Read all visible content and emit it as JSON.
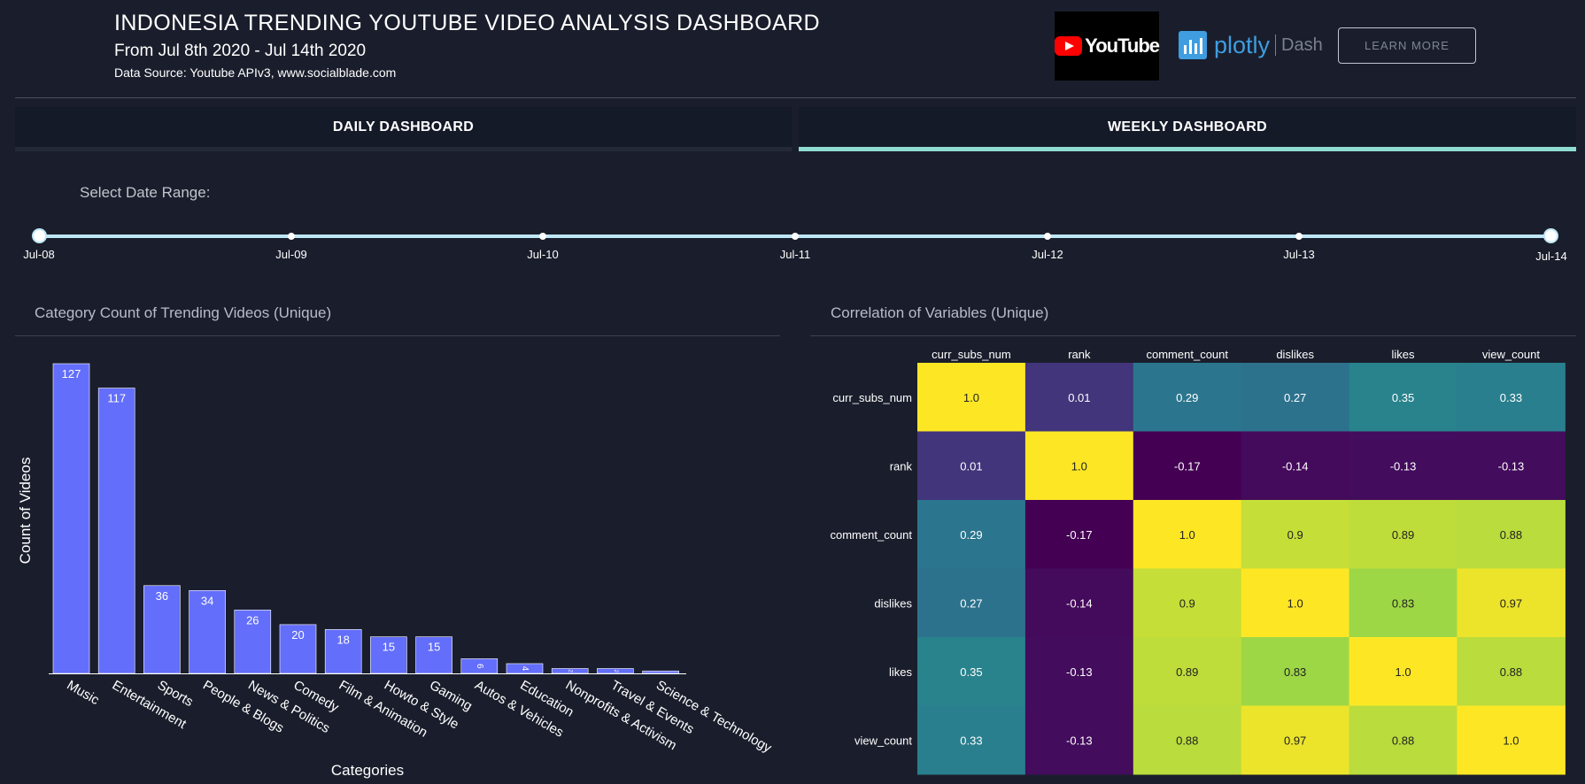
{
  "header": {
    "title": "INDONESIA TRENDING YOUTUBE VIDEO ANALYSIS DASHBOARD",
    "subtitle": "From Jul 8th 2020 - Jul 14th 2020",
    "source": "Data Source: Youtube APIv3, www.socialblade.com",
    "youtube_logo_text": "YouTube",
    "plotly_logo_text": "plotly",
    "plotly_dash_text": "Dash",
    "learn_more_label": "LEARN MORE"
  },
  "tabs": [
    {
      "label": "DAILY DASHBOARD",
      "selected": false
    },
    {
      "label": "WEEKLY DASHBOARD",
      "selected": true
    }
  ],
  "date_range": {
    "label": "Select Date Range:",
    "ticks": [
      "Jul-08",
      "Jul-09",
      "Jul-10",
      "Jul-11",
      "Jul-12",
      "Jul-13",
      "Jul-14"
    ],
    "selected_start": "Jul-08",
    "selected_end": "Jul-14"
  },
  "panels": {
    "category_title": "Category Count of Trending Videos (Unique)",
    "correlation_title": "Correlation of Variables (Unique)"
  },
  "colors": {
    "background": "#1a1e2c",
    "bar": "#636efa",
    "tab_active": "#8fdcd0",
    "slider": "#bfe6f7"
  },
  "chart_data": [
    {
      "type": "bar",
      "categories": [
        "Music",
        "Entertainment",
        "Sports",
        "People & Blogs",
        "News & Politics",
        "Comedy",
        "Film & Animation",
        "Howto & Style",
        "Gaming",
        "Autos & Vehicles",
        "Education",
        "Nonprofits & Activism",
        "Travel & Events",
        "Science & Technology"
      ],
      "values": [
        127,
        117,
        36,
        34,
        26,
        20,
        18,
        15,
        15,
        6,
        4,
        2,
        2,
        1
      ],
      "data_labels": [
        "127",
        "117",
        "36",
        "34",
        "26",
        "20",
        "18",
        "15",
        "15",
        "6",
        "4",
        "2",
        "2",
        ""
      ],
      "xlabel": "Categories",
      "ylabel": "Count of Videos",
      "ylim": [
        0,
        127
      ],
      "grid": false
    },
    {
      "type": "heatmap",
      "x": [
        "curr_subs_num",
        "rank",
        "comment_count",
        "dislikes",
        "likes",
        "view_count"
      ],
      "y": [
        "curr_subs_num",
        "rank",
        "comment_count",
        "dislikes",
        "likes",
        "view_count"
      ],
      "values": [
        [
          1.0,
          0.01,
          0.29,
          0.27,
          0.35,
          0.33
        ],
        [
          0.01,
          1.0,
          -0.17,
          -0.14,
          -0.13,
          -0.13
        ],
        [
          0.29,
          -0.17,
          1.0,
          0.9,
          0.89,
          0.88
        ],
        [
          0.27,
          -0.14,
          0.9,
          1.0,
          0.83,
          0.97
        ],
        [
          0.35,
          -0.13,
          0.89,
          0.83,
          1.0,
          0.88
        ],
        [
          0.33,
          -0.13,
          0.88,
          0.97,
          0.88,
          1.0
        ]
      ],
      "cell_labels": [
        [
          "1.0",
          "0.01",
          "0.29",
          "0.27",
          "0.35",
          "0.33"
        ],
        [
          "0.01",
          "1.0",
          "-0.17",
          "-0.14",
          "-0.13",
          "-0.13"
        ],
        [
          "0.29",
          "-0.17",
          "1.0",
          "0.9",
          "0.89",
          "0.88"
        ],
        [
          "0.27",
          "-0.14",
          "0.9",
          "1.0",
          "0.83",
          "0.97"
        ],
        [
          "0.35",
          "-0.13",
          "0.89",
          "0.83",
          "1.0",
          "0.88"
        ],
        [
          "0.33",
          "-0.13",
          "0.88",
          "0.97",
          "0.88",
          "1.0"
        ]
      ],
      "colorscale": "viridis",
      "zrange": [
        -0.17,
        1.0
      ]
    }
  ]
}
